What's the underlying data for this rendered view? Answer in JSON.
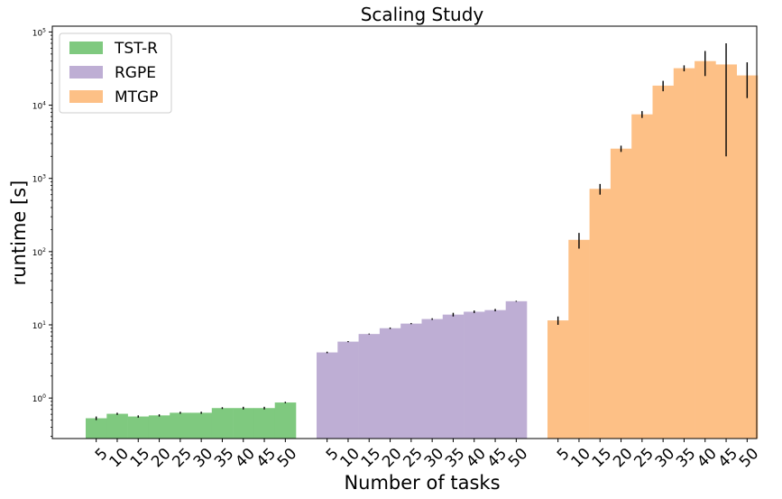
{
  "chart_data": {
    "type": "bar",
    "title": "Scaling Study",
    "xlabel": "Number of tasks",
    "ylabel": "runtime [s]",
    "yscale": "log",
    "ylim": [
      0.28,
      120000
    ],
    "y_ticks": [
      {
        "value": 1,
        "base": "10",
        "exp": "0"
      },
      {
        "value": 10,
        "base": "10",
        "exp": "1"
      },
      {
        "value": 100,
        "base": "10",
        "exp": "2"
      },
      {
        "value": 1000,
        "base": "10",
        "exp": "3"
      },
      {
        "value": 10000,
        "base": "10",
        "exp": "4"
      },
      {
        "value": 100000,
        "base": "10",
        "exp": "5"
      }
    ],
    "legend_position": "top-left",
    "categories": [
      "5",
      "10",
      "15",
      "20",
      "25",
      "30",
      "35",
      "40",
      "45",
      "50"
    ],
    "series": [
      {
        "name": "TST-R",
        "color": "#7fc97f",
        "values": [
          0.53,
          0.61,
          0.56,
          0.58,
          0.63,
          0.63,
          0.73,
          0.73,
          0.73,
          0.87
        ],
        "error": [
          0.03,
          0.02,
          0.02,
          0.02,
          0.02,
          0.02,
          0.02,
          0.03,
          0.03,
          0.02
        ]
      },
      {
        "name": "RGPE",
        "color": "#beaed4",
        "values": [
          4.2,
          5.9,
          7.5,
          9.0,
          10.4,
          12.0,
          13.8,
          15.1,
          15.9,
          21.0
        ],
        "error": [
          0.1,
          0.1,
          0.1,
          0.2,
          0.2,
          0.3,
          0.8,
          0.6,
          0.6,
          0.3
        ]
      },
      {
        "name": "MTGP",
        "color": "#fdc086",
        "values": [
          11.5,
          145,
          720,
          2550,
          7500,
          18500,
          32000,
          40000,
          36000,
          25500
        ],
        "error": [
          1.5,
          35,
          120,
          250,
          800,
          3000,
          3000,
          15000,
          34000,
          13000
        ]
      }
    ]
  }
}
